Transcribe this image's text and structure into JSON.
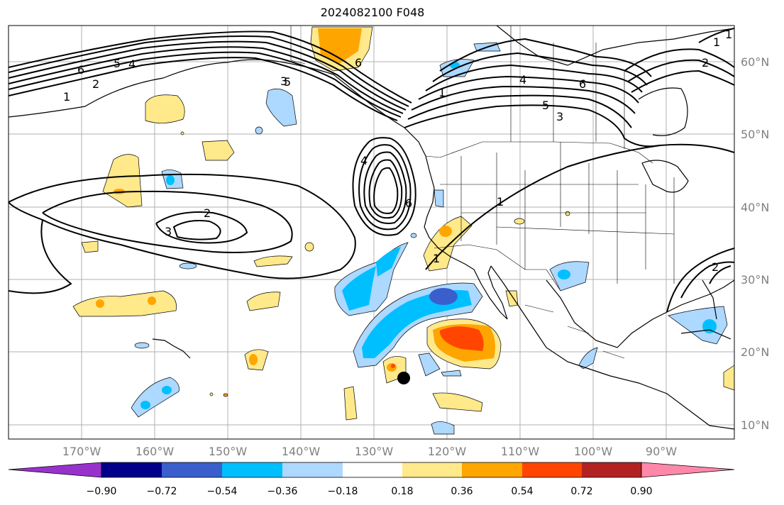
{
  "title": "2024082100 F048",
  "lon_ticks": [
    "170°W",
    "160°W",
    "150°W",
    "140°W",
    "130°W",
    "120°W",
    "110°W",
    "100°W",
    "90°W"
  ],
  "lat_ticks": [
    "60°N",
    "50°N",
    "40°N",
    "30°N",
    "20°N",
    "10°N"
  ],
  "colorbar": {
    "tick_labels": [
      "−0.90",
      "−0.72",
      "−0.54",
      "−0.36",
      "−0.18",
      "0.18",
      "0.36",
      "0.54",
      "0.72",
      "0.90"
    ],
    "colors": [
      "#9932cc",
      "#00008b",
      "#3a5fcd",
      "#00bfff",
      "#add8ff",
      "#ffffff",
      "#ffe98a",
      "#ffa500",
      "#ff4500",
      "#b22222",
      "#ff88aa"
    ]
  },
  "contour_labels": [
    "6",
    "2",
    "1",
    "5",
    "4",
    "3",
    "5",
    "2",
    "3",
    "1",
    "4",
    "6",
    "5",
    "3",
    "4",
    "6",
    "6",
    "1",
    "1",
    "2",
    "1",
    "1",
    "2"
  ],
  "marker": "storm-center-dot"
}
